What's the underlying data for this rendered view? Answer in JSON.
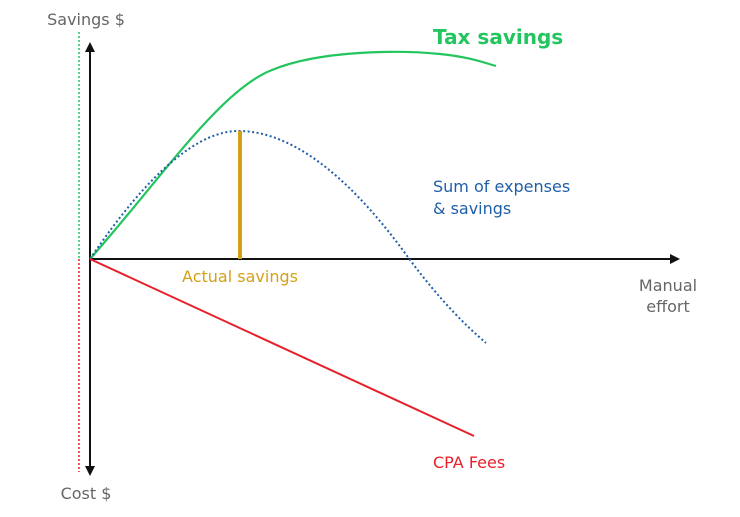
{
  "chart_data": {
    "type": "line",
    "title": "",
    "xlabel": "Manual effort",
    "ylabel_top": "Savings $",
    "ylabel_bottom": "Cost $",
    "series": [
      {
        "name": "Tax savings",
        "color": "#22c55e",
        "style": "solid"
      },
      {
        "name": "Sum of expenses & savings",
        "color": "#1f5fa8",
        "style": "dotted"
      },
      {
        "name": "CPA Fees",
        "color": "#e8202a",
        "style": "solid"
      }
    ],
    "annotations": [
      {
        "text": "Actual savings",
        "color": "#d4a017"
      }
    ]
  },
  "labels": {
    "savings_axis": "Savings $",
    "cost_axis": "Cost $",
    "x_line1": "Manual",
    "x_line2": "effort",
    "tax_savings": "Tax savings",
    "sum_line1": "Sum of expenses",
    "sum_line2": "& savings",
    "actual_savings": "Actual savings",
    "cpa_fees": "CPA Fees"
  },
  "colors": {
    "axis": "#111111",
    "axis_label": "#666666",
    "tax": "#22c55e",
    "sum": "#1f5fa8",
    "cpa": "#e8202a",
    "actual": "#d4a017",
    "left_green": "#22c55e",
    "left_red": "#e8202a"
  }
}
